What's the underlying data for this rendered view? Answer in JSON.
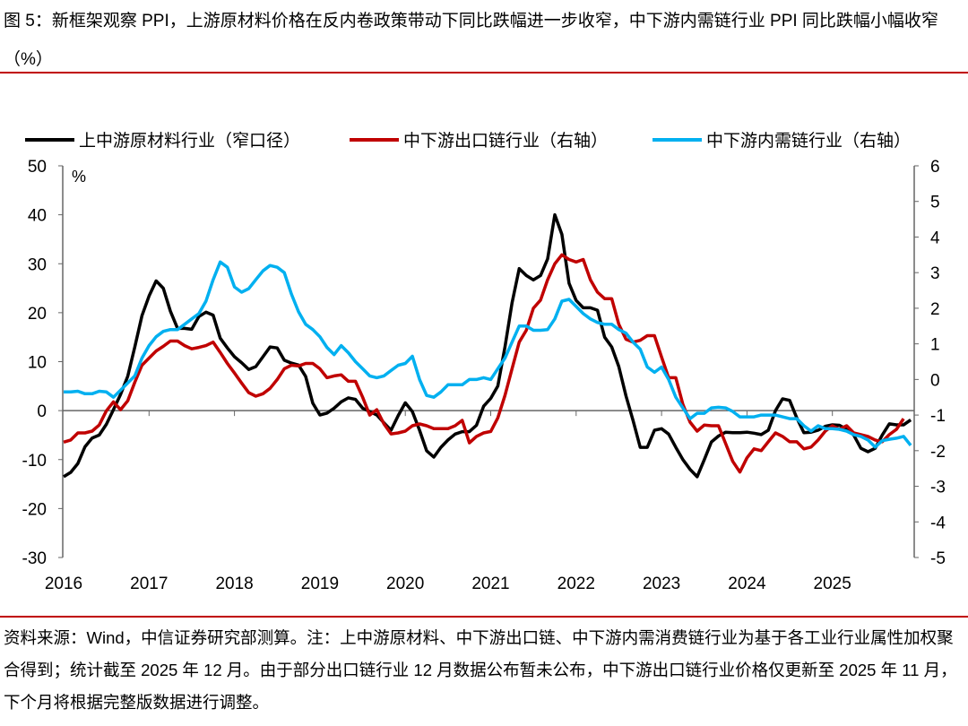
{
  "title": "图 5：新框架观察 PPI，上游原材料价格在反内卷政策带动下同比跌幅进一步收窄，中下游内需链行业 PPI 同比跌幅小幅收窄（%）",
  "source": "资料来源：Wind，中信证券研究部测算。注：上中游原材料、中下游出口链、中下游内需消费链行业为基于各工业行业属性加权聚合得到；统计截至 2025 年 12 月。由于部分出口链行业 12 月数据公布暂未公布，中下游出口链行业价格仅更新至 2025 年 11 月，下个月将根据完整版数据进行调整。",
  "chart_data": {
    "type": "line",
    "title": "",
    "xlabel": "",
    "ylabel_left": "%",
    "ylim_left": [
      -30,
      50
    ],
    "ylim_right": [
      -5,
      6
    ],
    "yticks_left": [
      "50",
      "40",
      "30",
      "20",
      "10",
      "0",
      "-10",
      "-20",
      "-30"
    ],
    "yticks_right": [
      "6",
      "5",
      "4",
      "3",
      "2",
      "1",
      "0",
      "-1",
      "-2",
      "-3",
      "-4",
      "-5"
    ],
    "x_tick_labels": [
      "2016",
      "2017",
      "2018",
      "2019",
      "2020",
      "2021",
      "2022",
      "2023",
      "2024",
      "2025"
    ],
    "x_start": "2016-01",
    "frequency": "monthly",
    "legend_position": "top",
    "grid": false,
    "series": [
      {
        "name": "上中游原材料行业（窄口径）",
        "axis": "left",
        "color": "#000000",
        "values": [
          -13.5,
          -12.6,
          -10.8,
          -7.4,
          -5.6,
          -5,
          -2.8,
          0.2,
          3.3,
          7,
          13,
          19.4,
          23.4,
          26.5,
          25,
          20.3,
          16.8,
          16.8,
          16.6,
          19.2,
          20.1,
          19.5,
          14.8,
          12.8,
          11,
          9.8,
          8.4,
          9,
          11,
          13,
          12.8,
          10.3,
          9.7,
          9.3,
          7,
          1.5,
          -0.9,
          -0.5,
          0.5,
          1.8,
          2.6,
          2.3,
          0.5,
          -0.2,
          -0.9,
          -2.5,
          -4,
          -1,
          1.6,
          -0.2,
          -4,
          -8.2,
          -9.5,
          -7.5,
          -6,
          -4.8,
          -4.3,
          -4.3,
          -3,
          0.9,
          2.5,
          5,
          13,
          22,
          29,
          27.6,
          26.7,
          27.6,
          31,
          40,
          36,
          26,
          22.5,
          21,
          21,
          20.5,
          15,
          13,
          9,
          3,
          -2,
          -7.5,
          -7.5,
          -4,
          -3.7,
          -4.8,
          -7.5,
          -10,
          -12,
          -13.5,
          -10,
          -6.4,
          -5.2,
          -4.4,
          -4.5,
          -4.5,
          -4.4,
          -4.6,
          -4.9,
          -4,
          0,
          2.4,
          2.1,
          -1.5,
          -4.5,
          -4.4,
          -4,
          -3.2,
          -2.9,
          -3,
          -3.8,
          -5,
          -7.7,
          -8.4,
          -7.7,
          -5,
          -2.7,
          -2.9,
          -2.9,
          -1.9
        ]
      },
      {
        "name": "中下游出口链行业（右轴）",
        "axis": "right",
        "color": "#c00000",
        "values": [
          -1.76,
          -1.7,
          -1.5,
          -1.5,
          -1.45,
          -1.28,
          -0.88,
          -0.63,
          -0.85,
          -0.6,
          -0.08,
          0.4,
          0.6,
          0.8,
          0.93,
          1.08,
          1.08,
          0.95,
          0.86,
          0.9,
          0.95,
          1.05,
          0.76,
          0.45,
          0.18,
          -0.1,
          -0.37,
          -0.47,
          -0.4,
          -0.25,
          0,
          0.3,
          0.4,
          0.38,
          0.45,
          0.45,
          0.3,
          0.05,
          0.1,
          0.13,
          -0.05,
          -0.05,
          -0.5,
          -1,
          -0.85,
          -1.25,
          -1.53,
          -1.5,
          -1.45,
          -1.3,
          -1.25,
          -1.3,
          -1.38,
          -1.38,
          -1.38,
          -1.3,
          -1.15,
          -1.78,
          -1.6,
          -1.5,
          -1.46,
          -1.08,
          -0.45,
          0.3,
          1.05,
          1.38,
          2,
          2.23,
          2.8,
          3.25,
          3.5,
          3.37,
          3.3,
          3.37,
          2.8,
          2.45,
          2.27,
          2.27,
          1.55,
          1.13,
          1.05,
          1.1,
          1.23,
          1.23,
          0.63,
          0.05,
          0.05,
          -0.7,
          -1.2,
          -1.45,
          -1.28,
          -1.3,
          -1.3,
          -1.8,
          -2.3,
          -2.6,
          -2.2,
          -1.95,
          -2,
          -1.75,
          -1.5,
          -1.6,
          -1.75,
          -1.75,
          -1.95,
          -1.9,
          -1.7,
          -1.45,
          -1.3,
          -1.4,
          -1.3,
          -1.5,
          -1.55,
          -1.6,
          -1.7,
          -1.75,
          -1.55,
          -1.4,
          -1.1
        ]
      },
      {
        "name": "中下游内需链行业（右轴）",
        "axis": "right",
        "color": "#00b0f0",
        "values": [
          -0.35,
          -0.35,
          -0.33,
          -0.4,
          -0.4,
          -0.33,
          -0.35,
          -0.5,
          -0.3,
          -0.1,
          0.1,
          0.6,
          0.95,
          1.2,
          1.35,
          1.4,
          1.4,
          1.55,
          1.7,
          1.85,
          2.2,
          2.8,
          3.3,
          3.15,
          2.6,
          2.45,
          2.55,
          2.8,
          3.05,
          3.2,
          3.15,
          3,
          2.4,
          1.9,
          1.55,
          1.4,
          1.2,
          0.9,
          0.7,
          0.95,
          0.75,
          0.5,
          0.3,
          0.1,
          0.05,
          0.1,
          0.25,
          0.4,
          0.45,
          0.65,
          0,
          -0.45,
          -0.5,
          -0.35,
          -0.15,
          -0.15,
          -0.15,
          0,
          0,
          0.05,
          0,
          0.3,
          0.6,
          1.05,
          1.5,
          1.5,
          1.38,
          1.38,
          1.4,
          1.7,
          2.2,
          2.25,
          2.05,
          1.85,
          1.7,
          1.6,
          1.55,
          1.55,
          1.4,
          1.3,
          1.05,
          0.85,
          0.35,
          0.2,
          0.35,
          0,
          -0.5,
          -0.8,
          -1.1,
          -0.95,
          -0.95,
          -0.8,
          -0.78,
          -0.8,
          -0.9,
          -1.05,
          -1.05,
          -1.05,
          -1,
          -1,
          -1,
          -1.05,
          -1.1,
          -1.1,
          -1.3,
          -1.45,
          -1.3,
          -1.38,
          -1.38,
          -1.4,
          -1.45,
          -1.55,
          -1.6,
          -1.7,
          -1.9,
          -1.72,
          -1.68,
          -1.65,
          -1.6,
          -1.85
        ]
      }
    ]
  }
}
